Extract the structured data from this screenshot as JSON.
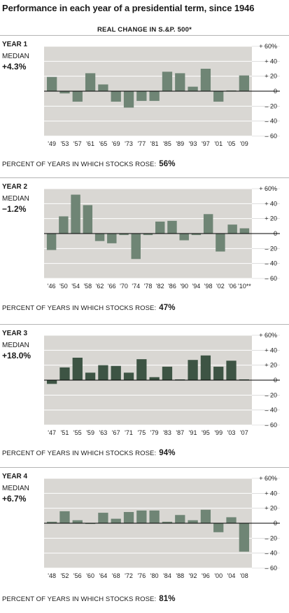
{
  "header": {
    "title": "Performance in each year of a presidential term, since 1946",
    "subtitle": "REAL CHANGE IN S.&P. 500*"
  },
  "panels": [
    {
      "year_label": "YEAR 1",
      "median_word": "MEDIAN",
      "median_value": "+4.3%",
      "pct_label": "PERCENT OF YEARS IN WHICH STOCKS ROSE:",
      "pct_value": "56%"
    },
    {
      "year_label": "YEAR 2",
      "median_word": "MEDIAN",
      "median_value": "−1.2%",
      "pct_label": "PERCENT OF YEARS IN WHICH STOCKS ROSE:",
      "pct_value": "47%"
    },
    {
      "year_label": "YEAR 3",
      "median_word": "MEDIAN",
      "median_value": "+18.0%",
      "pct_label": "PERCENT OF YEARS IN WHICH STOCKS ROSE:",
      "pct_value": "94%"
    },
    {
      "year_label": "YEAR 4",
      "median_word": "MEDIAN",
      "median_value": "+6.7%",
      "pct_label": "PERCENT OF YEARS IN WHICH STOCKS ROSE:",
      "pct_value": "81%"
    }
  ],
  "colors": {
    "plot_background": "#d9d7d3",
    "zero_line": "#000000",
    "grid_line": "#ffffff",
    "bar_colors": [
      "#6f8575",
      "#6f8575",
      "#3d5444",
      "#6f8575"
    ]
  },
  "chart_data": [
    {
      "type": "bar",
      "title": "YEAR 1",
      "ylim": [
        -60,
        60
      ],
      "yticks": [
        "+ 60%",
        "+ 40",
        "+ 20",
        "0",
        "– 20",
        "– 40",
        "– 60"
      ],
      "categories": [
        "1949",
        "1953",
        "1957",
        "1961",
        "1965",
        "1969",
        "1973",
        "1977",
        "1981",
        "1985",
        "1989",
        "1993",
        "1997",
        "2001",
        "2005",
        "2009"
      ],
      "values": [
        19,
        -3,
        -14,
        24,
        9,
        -14,
        -22,
        -13,
        -13,
        26,
        24,
        6,
        30,
        -14,
        1,
        21
      ],
      "x_tick_labels": [
        "'49",
        "'53",
        "'57",
        "'61",
        "'65",
        "'69",
        "'73",
        "'77",
        "'81",
        "'85",
        "'89",
        "'93",
        "'97",
        "'01",
        "'05",
        "'09"
      ],
      "grid": true
    },
    {
      "type": "bar",
      "title": "YEAR 2",
      "ylim": [
        -60,
        60
      ],
      "yticks": [
        "+ 60%",
        "+ 40",
        "+ 20",
        "0",
        "– 20",
        "– 40",
        "– 60"
      ],
      "categories": [
        "1946",
        "1950",
        "1954",
        "1958",
        "1962",
        "1966",
        "1970",
        "1974",
        "1978",
        "1982",
        "1986",
        "1990",
        "1994",
        "1998",
        "2002",
        "2006",
        "2010"
      ],
      "values": [
        -22,
        23,
        52,
        38,
        -10,
        -13,
        -2,
        -34,
        -2,
        16,
        17,
        -9,
        -2,
        26,
        -24,
        12,
        7
      ],
      "x_tick_labels": [
        "'46",
        "'50",
        "'54",
        "'58",
        "'62",
        "'66",
        "'70",
        "'74",
        "'78",
        "'82",
        "'86",
        "'90",
        "'94",
        "'98",
        "'02",
        "'06",
        "'10**"
      ],
      "grid": true
    },
    {
      "type": "bar",
      "title": "YEAR 3",
      "ylim": [
        -60,
        60
      ],
      "yticks": [
        "+ 60%",
        "+ 40",
        "+ 20",
        "0",
        "– 20",
        "– 40",
        "– 60"
      ],
      "categories": [
        "1947",
        "1951",
        "1955",
        "1959",
        "1963",
        "1967",
        "1971",
        "1975",
        "1979",
        "1983",
        "1987",
        "1991",
        "1995",
        "1999",
        "2003",
        "2007"
      ],
      "values": [
        -5,
        17,
        30,
        10,
        20,
        19,
        10,
        28,
        4,
        18,
        1,
        27,
        33,
        18,
        26,
        1
      ],
      "x_tick_labels": [
        "'47",
        "'51",
        "'55",
        "'59",
        "'63",
        "'67",
        "'71",
        "'75",
        "'79",
        "'83",
        "'87",
        "'91",
        "'95",
        "'99",
        "'03",
        "'07"
      ],
      "grid": true
    },
    {
      "type": "bar",
      "title": "YEAR 4",
      "ylim": [
        -60,
        60
      ],
      "yticks": [
        "+ 60%",
        "+ 40",
        "+ 20",
        "0",
        "– 20",
        "– 40",
        "– 60"
      ],
      "categories": [
        "1948",
        "1952",
        "1956",
        "1960",
        "1964",
        "1968",
        "1972",
        "1976",
        "1980",
        "1984",
        "1988",
        "1992",
        "1996",
        "2000",
        "2004",
        "2008"
      ],
      "values": [
        2,
        16,
        4,
        -1,
        14,
        6,
        15,
        17,
        17,
        2,
        11,
        4,
        18,
        -12,
        8,
        -38
      ],
      "x_tick_labels": [
        "'48",
        "'52",
        "'56",
        "'60",
        "'64",
        "'68",
        "'72",
        "'76",
        "'80",
        "'84",
        "'88",
        "'92",
        "'96",
        "'00",
        "'04",
        "'08"
      ],
      "grid": true
    }
  ]
}
